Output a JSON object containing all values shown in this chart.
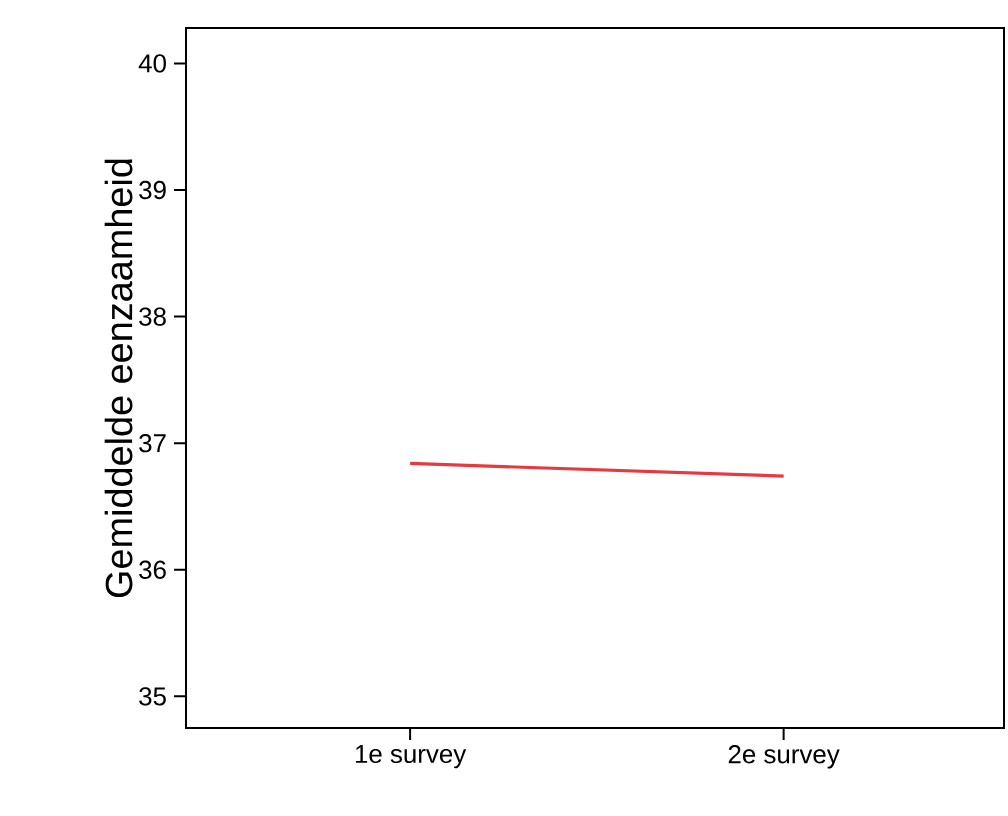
{
  "chart_data": {
    "type": "line",
    "ylabel": "Gemiddelde eenzaamheid",
    "categories": [
      "1e survey",
      "2e survey"
    ],
    "series": [
      {
        "color": "#e8393f",
        "values": [
          36.84,
          36.74
        ]
      }
    ],
    "ylim": [
      34.75,
      40.28
    ],
    "yticks": [
      35,
      36,
      37,
      38,
      39,
      40
    ],
    "grid": false,
    "marker": "none",
    "line_style": "solid"
  }
}
